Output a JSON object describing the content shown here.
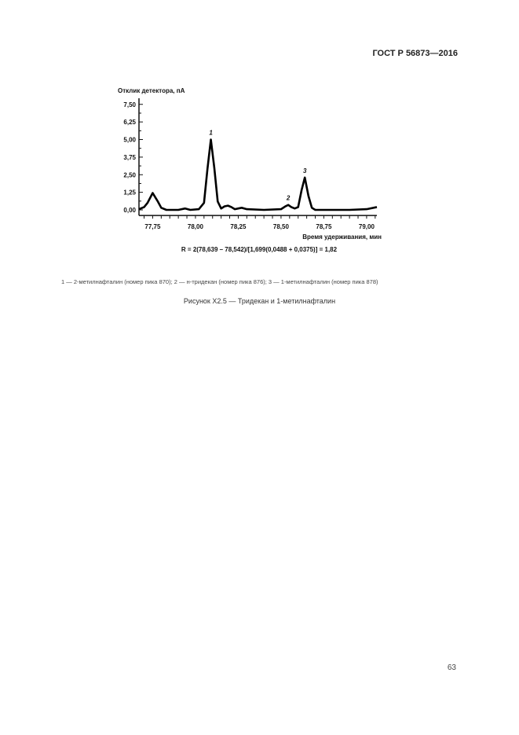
{
  "header": {
    "standard": "ГОСТ Р 56873—2016"
  },
  "chart_data": {
    "type": "line",
    "ylabel": "Отклик детектора, пА",
    "xlabel": "Время удерживания, мин",
    "xlim": [
      77.67,
      79.06
    ],
    "ylim": [
      -0.4,
      8.0
    ],
    "xticks": [
      "77,75",
      "78,00",
      "78,25",
      "78,50",
      "78,75",
      "79,00"
    ],
    "xtick_values": [
      77.75,
      78.0,
      78.25,
      78.5,
      78.75,
      79.0
    ],
    "yticks": [
      "0,00",
      "1,25",
      "2,50",
      "3,75",
      "5,00",
      "6,25",
      "7,50"
    ],
    "ytick_values": [
      0,
      1.25,
      2.5,
      3.75,
      5.0,
      6.25,
      7.5
    ],
    "grid": false,
    "series": [
      {
        "x": [
          77.67,
          77.7,
          77.72,
          77.75,
          77.78,
          77.8,
          77.83,
          77.9,
          77.94,
          77.97,
          78.02,
          78.05,
          78.07,
          78.09,
          78.11,
          78.13,
          78.15,
          78.17,
          78.19,
          78.21,
          78.23,
          78.25,
          78.27,
          78.3,
          78.4,
          78.5,
          78.525,
          78.542,
          78.56,
          78.58,
          78.6,
          78.62,
          78.639,
          78.66,
          78.68,
          78.7,
          78.8,
          78.9,
          79.0,
          79.06
        ],
        "y": [
          0.05,
          0.2,
          0.5,
          1.2,
          0.6,
          0.15,
          0.0,
          0.0,
          0.1,
          0.0,
          0.05,
          0.5,
          2.9,
          5.0,
          3.0,
          0.6,
          0.1,
          0.25,
          0.3,
          0.2,
          0.05,
          0.1,
          0.15,
          0.05,
          0.0,
          0.05,
          0.25,
          0.35,
          0.2,
          0.1,
          0.2,
          1.4,
          2.3,
          1.0,
          0.15,
          0.0,
          0.0,
          0.0,
          0.05,
          0.2
        ]
      }
    ],
    "annotations": [
      {
        "label": "1",
        "x": 78.09
      },
      {
        "label": "2",
        "x": 78.542
      },
      {
        "label": "3",
        "x": 78.639
      }
    ],
    "formula": "R = 2(78,639 – 78,542)/[1,699(0,0488 + 0,0375)] = 1,82"
  },
  "legend": "1 — 2-метилнафталин (номер пика 870); 2 — н-тридекан (номер пика 876); 3 — 1-метилнафталин (номер пика 878)",
  "caption": "Рисунок Х2.5 — Тридекан и 1-метилнафталин",
  "page_number": "63"
}
